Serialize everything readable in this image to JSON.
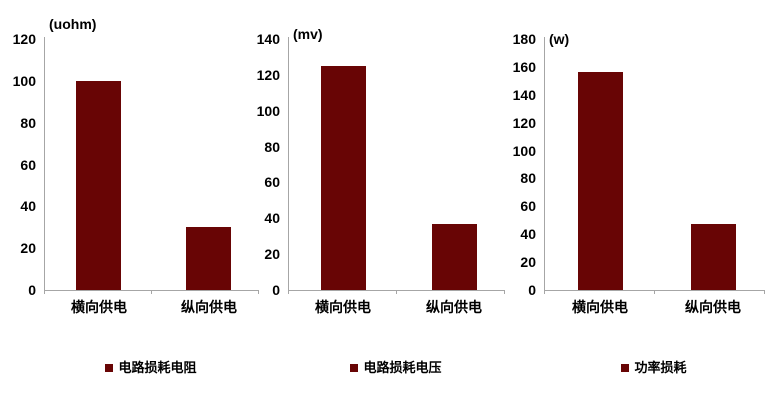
{
  "colors": {
    "bar": "#680505",
    "axis": "#a6a6a6",
    "text": "#000000",
    "background": "#ffffff"
  },
  "chart_data": [
    {
      "type": "bar",
      "title": "",
      "unit_label": "(uohm)",
      "categories": [
        "横向供电",
        "纵向供电"
      ],
      "values": [
        100,
        30
      ],
      "ylabel": "(uohm)",
      "xlabel": "",
      "ylim": [
        0,
        120
      ],
      "ytick_step": 20,
      "ytick_labels": [
        "0",
        "20",
        "40",
        "60",
        "80",
        "100",
        "120"
      ],
      "grid": false,
      "legend_position": "bottom",
      "legend": "电路损耗电阻"
    },
    {
      "type": "bar",
      "title": "",
      "unit_label": "(mv)",
      "categories": [
        "横向供电",
        "纵向供电"
      ],
      "values": [
        125,
        37
      ],
      "ylabel": "(mv)",
      "xlabel": "",
      "ylim": [
        0,
        140
      ],
      "ytick_step": 20,
      "ytick_labels": [
        "0",
        "20",
        "40",
        "60",
        "80",
        "100",
        "120",
        "140"
      ],
      "grid": false,
      "legend_position": "bottom",
      "legend": "电路损耗电压"
    },
    {
      "type": "bar",
      "title": "",
      "unit_label": "(w)",
      "categories": [
        "横向供电",
        "纵向供电"
      ],
      "values": [
        156,
        47
      ],
      "ylabel": "(w)",
      "xlabel": "",
      "ylim": [
        0,
        180
      ],
      "ytick_step": 20,
      "ytick_labels": [
        "0",
        "20",
        "40",
        "60",
        "80",
        "100",
        "120",
        "140",
        "160",
        "180"
      ],
      "grid": false,
      "legend_position": "bottom",
      "legend": "功率损耗"
    }
  ]
}
